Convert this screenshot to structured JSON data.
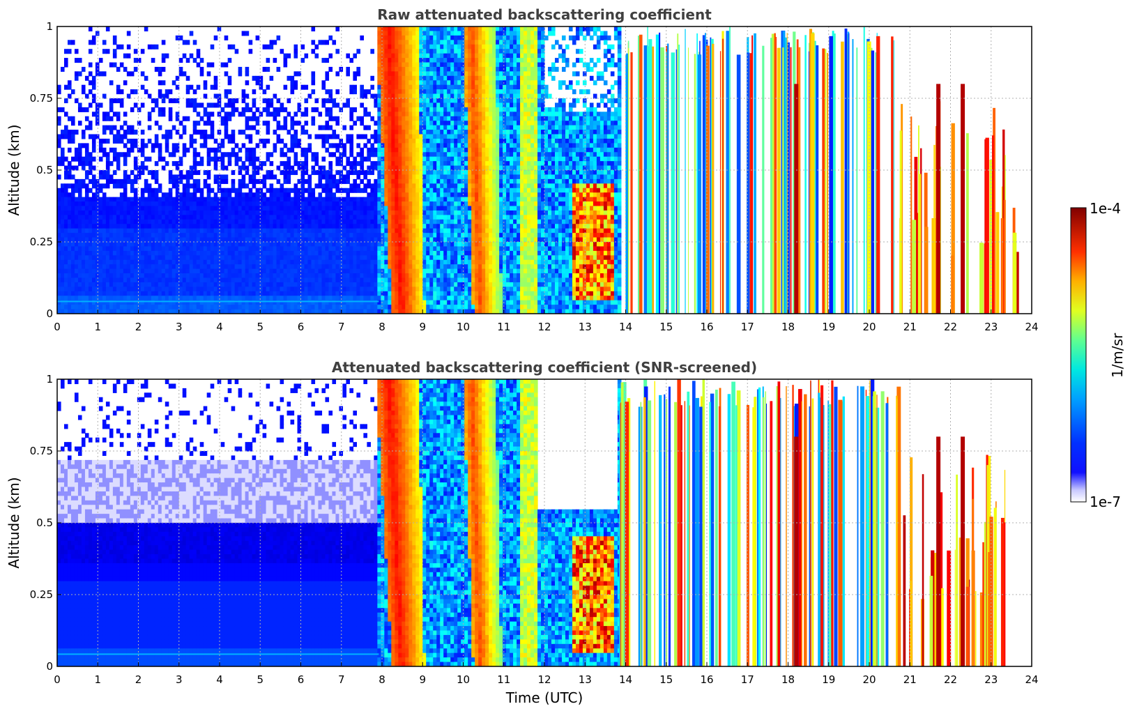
{
  "chart_data": [
    {
      "type": "heatmap",
      "title": "Raw attenuated backscattering coefficient",
      "xlabel": "",
      "ylabel": "Altitude (km)",
      "xlim": [
        0,
        24
      ],
      "ylim": [
        0,
        1
      ],
      "x_ticks": [
        "0",
        "1",
        "2",
        "3",
        "4",
        "5",
        "6",
        "7",
        "8",
        "9",
        "10",
        "11",
        "12",
        "13",
        "14",
        "15",
        "16",
        "17",
        "18",
        "19",
        "20",
        "21",
        "22",
        "23",
        "24"
      ],
      "y_ticks": [
        "0",
        "0.25",
        "0.5",
        "0.75",
        "1"
      ],
      "grid": true,
      "screened": false
    },
    {
      "type": "heatmap",
      "title": "Attenuated backscattering coefficient (SNR-screened)",
      "xlabel": "Time (UTC)",
      "ylabel": "Altitude (km)",
      "xlim": [
        0,
        24
      ],
      "ylim": [
        0,
        1
      ],
      "x_ticks": [
        "0",
        "1",
        "2",
        "3",
        "4",
        "5",
        "6",
        "7",
        "8",
        "9",
        "10",
        "11",
        "12",
        "13",
        "14",
        "15",
        "16",
        "17",
        "18",
        "19",
        "20",
        "21",
        "22",
        "23",
        "24"
      ],
      "y_ticks": [
        "0",
        "0.25",
        "0.5",
        "0.75",
        "1"
      ],
      "grid": true,
      "screened": true
    }
  ],
  "colorbar": {
    "label": "1/m/sr",
    "max_label": "1e-4",
    "min_label": "1e-7",
    "scale": "log",
    "range": [
      1e-07,
      0.0001
    ],
    "colormap": "jet"
  },
  "features": {
    "slanted_bands": [
      {
        "start_hour_top": 7.85,
        "start_hour_bottom": 8.25,
        "end_hour_top": 8.9,
        "end_hour_bottom": 9.1,
        "intensity": "high"
      },
      {
        "start_hour_top": 10.0,
        "start_hour_bottom": 10.25,
        "end_hour_top": 10.8,
        "end_hour_bottom": 11.0,
        "intensity": "high"
      }
    ],
    "strong_columns_hours": [
      18.15,
      21.65,
      22.25
    ]
  }
}
